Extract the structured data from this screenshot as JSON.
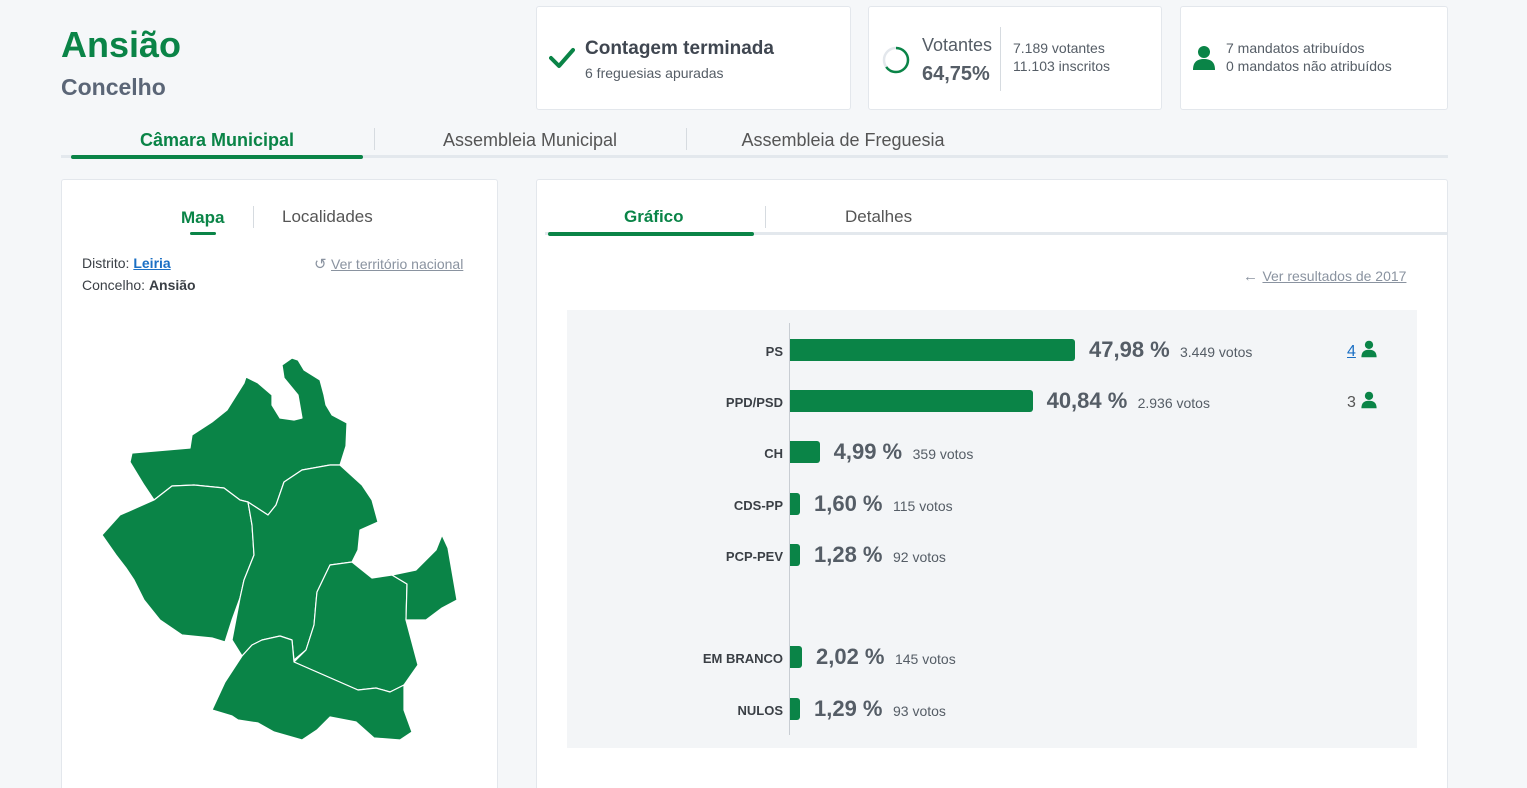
{
  "header": {
    "title": "Ansião",
    "subtitle": "Concelho"
  },
  "count_card": {
    "title": "Contagem terminada",
    "detail": "6 freguesias apuradas",
    "icon": "check-icon"
  },
  "voters_card": {
    "label": "Votantes",
    "percent": "64,75%",
    "voters": "7.189 votantes",
    "registered": "11.103 inscritos",
    "progress": 0.6475
  },
  "seats_card": {
    "assigned": "7 mandatos atribuídos",
    "unassigned": "0 mandatos não atribuídos",
    "icon": "person-icon"
  },
  "main_tabs": [
    {
      "label": "Câmara Municipal",
      "active": true
    },
    {
      "label": "Assembleia Municipal",
      "active": false
    },
    {
      "label": "Assembleia de Freguesia",
      "active": false
    }
  ],
  "map_panel": {
    "tabs": [
      {
        "label": "Mapa",
        "active": true
      },
      {
        "label": "Localidades",
        "active": false
      }
    ],
    "district_label": "Distrito:",
    "district_value": "Leiria",
    "municipality_label": "Concelho:",
    "municipality_value": "Ansião",
    "national_link": "Ver território nacional"
  },
  "chart_panel": {
    "tabs": [
      {
        "label": "Gráfico",
        "active": true
      },
      {
        "label": "Detalhes",
        "active": false
      }
    ],
    "previous_link": "Ver resultados de 2017"
  },
  "colors": {
    "accent": "#0a8447",
    "link": "#1a6fc4"
  },
  "chart_data": {
    "type": "bar",
    "orientation": "horizontal",
    "categories": [
      "PS",
      "PPD/PSD",
      "CH",
      "CDS-PP",
      "PCP-PEV",
      "EM BRANCO",
      "NULOS"
    ],
    "values": [
      47.98,
      40.84,
      4.99,
      1.6,
      1.28,
      2.02,
      1.29
    ],
    "value_labels": [
      "47,98 %",
      "40,84 %",
      "4,99 %",
      "1,60 %",
      "1,28 %",
      "2,02 %",
      "1,29 %"
    ],
    "votes_labels": [
      "3.449 votos",
      "2.936 votos",
      "359 votos",
      "115 votos",
      "92 votos",
      "145 votos",
      "93 votos"
    ],
    "seats": [
      "4",
      "3",
      "",
      "",
      "",
      "",
      ""
    ],
    "xlim": [
      0,
      100
    ]
  }
}
